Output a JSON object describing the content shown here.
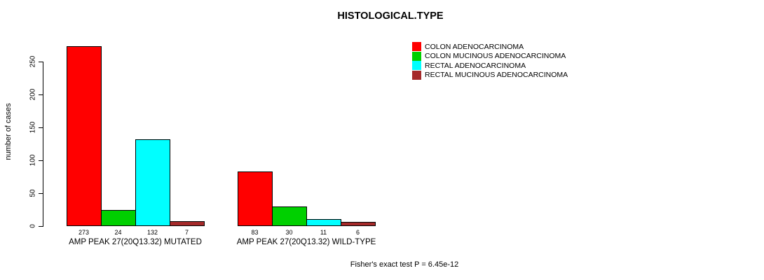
{
  "chart_data": {
    "type": "bar",
    "title": "HISTOLOGICAL.TYPE",
    "ylabel": "number of cases",
    "yticks": [
      0,
      50,
      100,
      150,
      200,
      250
    ],
    "ylim": [
      0,
      290
    ],
    "grid": false,
    "legend_position": "top-right",
    "categories": [
      "COLON ADENOCARCINOMA",
      "COLON MUCINOUS ADENOCARCINOMA",
      "RECTAL ADENOCARCINOMA",
      "RECTAL MUCINOUS ADENOCARCINOMA"
    ],
    "colors": [
      "#ff0000",
      "#00d000",
      "#00ffff",
      "#a52a2a"
    ],
    "groups": [
      {
        "label": "AMP PEAK 27(20Q13.32) MUTATED",
        "values": [
          273,
          24,
          132,
          7
        ]
      },
      {
        "label": "AMP PEAK 27(20Q13.32) WILD-TYPE",
        "values": [
          83,
          30,
          11,
          6
        ]
      }
    ],
    "footer": "Fisher's exact test P = 6.45e-12"
  }
}
